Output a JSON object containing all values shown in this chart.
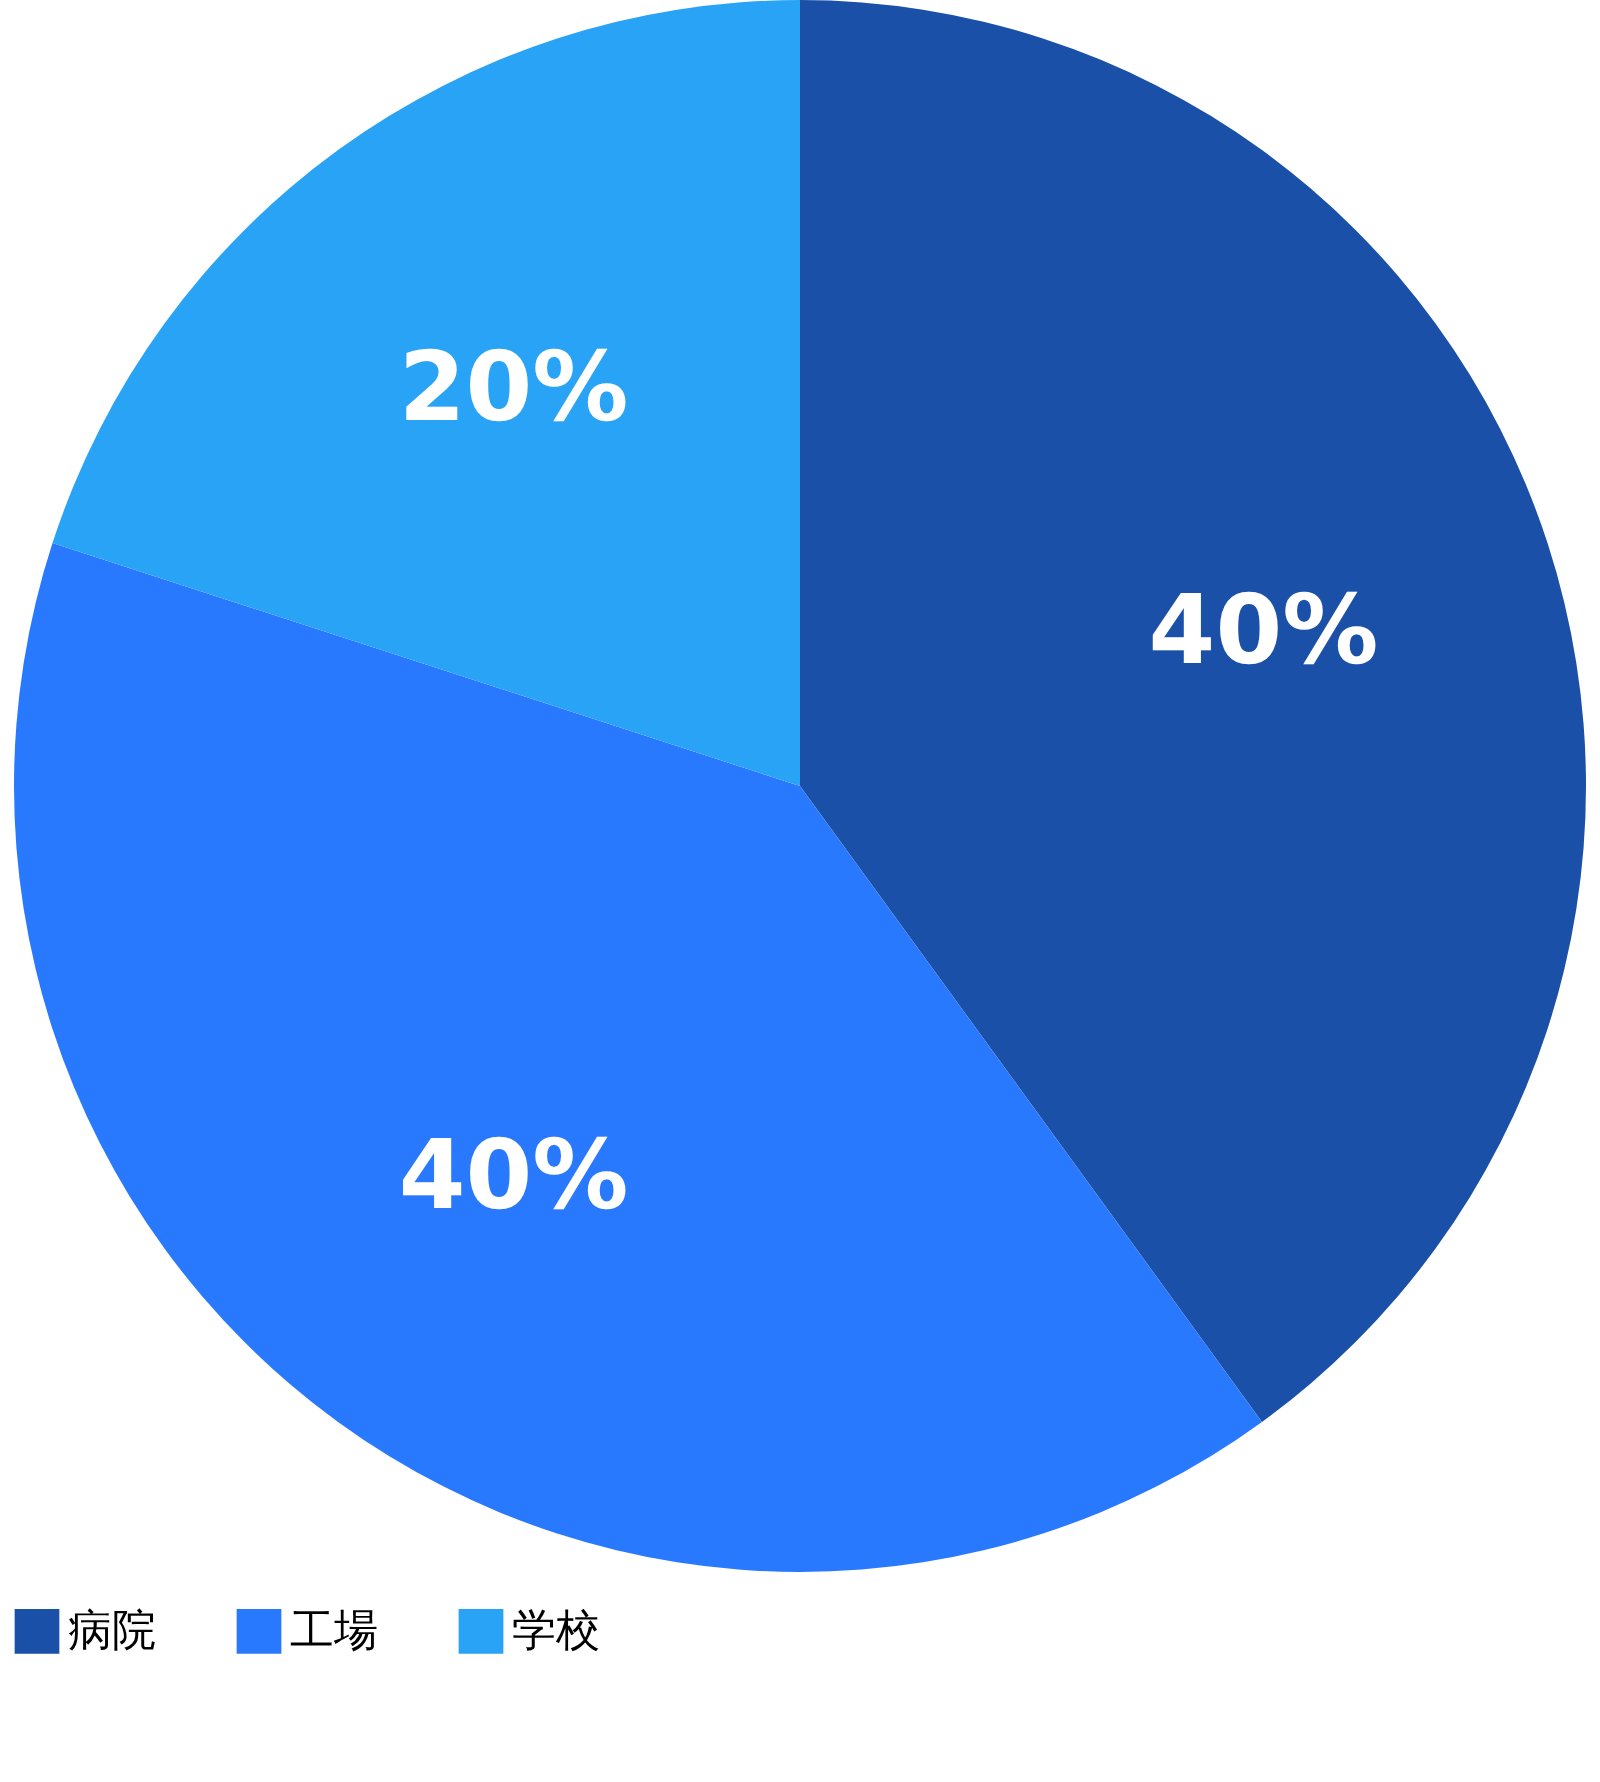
{
  "chart_data": {
    "type": "pie",
    "categories": [
      "病院",
      "工場",
      "学校"
    ],
    "values": [
      40,
      40,
      20
    ],
    "colors": [
      "#1a50a8",
      "#2979ff",
      "#29a3f5"
    ],
    "value_labels": [
      "40%",
      "40%",
      "20%"
    ],
    "legend": "bottom"
  }
}
